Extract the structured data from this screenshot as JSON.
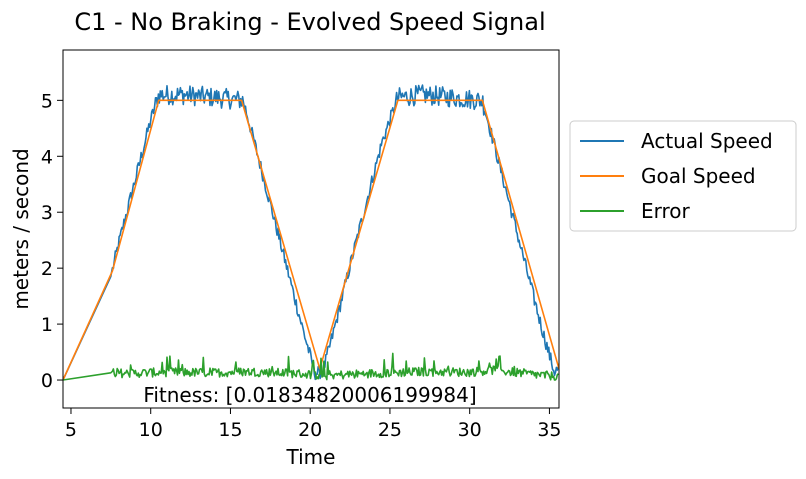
{
  "chart_data": {
    "type": "line",
    "title": "C1 - No Braking - Evolved  Speed Signal",
    "xlabel": "Time",
    "ylabel": "meters / second",
    "xlim": [
      4.5,
      35.6
    ],
    "ylim": [
      -0.5,
      5.9
    ],
    "xticks": [
      5,
      10,
      15,
      20,
      25,
      30,
      35
    ],
    "yticks": [
      0,
      1,
      2,
      3,
      4,
      5
    ],
    "grid": false,
    "legend_position": "right-outside",
    "annotation": "Fitness: [0.01834820006199984]",
    "series": [
      {
        "name": "Actual Speed",
        "color": "#1f77b4",
        "x": [
          4.5,
          7.5,
          8.0,
          9.0,
          10.0,
          10.5,
          12.0,
          14.0,
          15.8,
          16.5,
          17.5,
          18.5,
          19.5,
          20.3,
          20.8,
          21.5,
          22.5,
          23.5,
          24.5,
          25.5,
          27.0,
          29.0,
          30.8,
          31.5,
          32.5,
          33.5,
          34.5,
          35.3,
          35.6
        ],
        "y": [
          0.0,
          1.85,
          2.45,
          3.55,
          4.65,
          5.1,
          5.1,
          5.05,
          5.0,
          4.25,
          3.15,
          2.05,
          0.95,
          0.12,
          0.15,
          0.9,
          2.05,
          3.15,
          4.25,
          5.05,
          5.1,
          5.05,
          5.0,
          4.25,
          3.15,
          2.05,
          0.95,
          0.15,
          0.2
        ]
      },
      {
        "name": "Goal Speed",
        "color": "#ff7f0e",
        "x": [
          4.5,
          7.6,
          10.5,
          15.7,
          20.6,
          25.5,
          30.8,
          35.6
        ],
        "y": [
          0.0,
          1.95,
          5.0,
          5.0,
          0.2,
          5.0,
          5.0,
          0.2
        ]
      },
      {
        "name": "Error",
        "color": "#2ca02c",
        "x": [
          4.5,
          7.5,
          8.5,
          11.0,
          14.0,
          16.0,
          19.0,
          21.0,
          24.0,
          27.0,
          30.0,
          31.5,
          34.0,
          35.6
        ],
        "y": [
          0.0,
          0.13,
          0.12,
          0.14,
          0.13,
          0.15,
          0.12,
          0.08,
          0.12,
          0.15,
          0.14,
          0.18,
          0.1,
          0.06
        ]
      }
    ]
  }
}
